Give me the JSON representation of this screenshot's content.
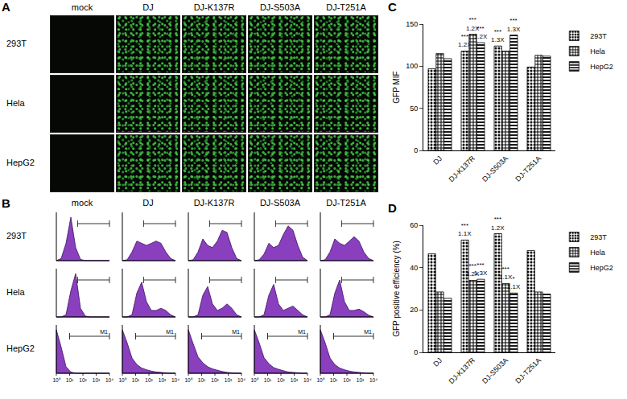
{
  "panel_A": {
    "panel": "A",
    "columns": [
      "mock",
      "DJ",
      "DJ-K137R",
      "DJ-S503A",
      "DJ-T251A"
    ],
    "rows": [
      "293T",
      "Hela",
      "HepG2"
    ],
    "signal": [
      false,
      true,
      true,
      true,
      true
    ]
  },
  "panel_B": {
    "panel": "B",
    "columns": [
      "mock",
      "DJ",
      "DJ-K137R",
      "DJ-S503A",
      "DJ-T251A"
    ],
    "xlim": [
      0,
      4
    ],
    "rows": [
      {
        "label": "293T",
        "gate": [
          1.6,
          4
        ],
        "histograms": [
          [
            0,
            5,
            40,
            100,
            30,
            3,
            0,
            0,
            0,
            0,
            0,
            0
          ],
          [
            0,
            2,
            20,
            45,
            40,
            35,
            40,
            45,
            40,
            20,
            5,
            0
          ],
          [
            0,
            2,
            20,
            50,
            35,
            30,
            45,
            70,
            65,
            30,
            5,
            0
          ],
          [
            0,
            2,
            15,
            40,
            30,
            35,
            60,
            80,
            70,
            35,
            8,
            0
          ],
          [
            0,
            2,
            20,
            50,
            40,
            35,
            45,
            55,
            45,
            20,
            5,
            0
          ]
        ]
      },
      {
        "label": "Hela",
        "gate": [
          1.6,
          4
        ],
        "histograms": [
          [
            0,
            0,
            5,
            60,
            100,
            20,
            2,
            0,
            0,
            0,
            0,
            0
          ],
          [
            0,
            0,
            5,
            55,
            80,
            35,
            15,
            15,
            20,
            15,
            5,
            0
          ],
          [
            0,
            0,
            5,
            50,
            70,
            30,
            15,
            20,
            30,
            20,
            5,
            0
          ],
          [
            0,
            0,
            5,
            50,
            75,
            30,
            15,
            20,
            25,
            15,
            5,
            0
          ],
          [
            0,
            0,
            5,
            55,
            85,
            35,
            15,
            15,
            18,
            12,
            4,
            0
          ]
        ]
      },
      {
        "label": "HepG2",
        "gate": [
          1.0,
          4
        ],
        "gate_label": "M1",
        "x_ticks": [
          {
            "value": 0,
            "label": "10⁰"
          },
          {
            "value": 1,
            "label": "10¹"
          },
          {
            "value": 2,
            "label": "10²"
          },
          {
            "value": 3,
            "label": "10³"
          },
          {
            "value": 4,
            "label": "10⁴"
          }
        ],
        "histograms": [
          [
            100,
            60,
            15,
            3,
            0,
            0,
            0,
            0,
            0,
            0,
            0,
            0
          ],
          [
            100,
            70,
            35,
            20,
            12,
            8,
            5,
            3,
            2,
            1,
            0,
            0
          ],
          [
            100,
            68,
            38,
            24,
            15,
            10,
            7,
            4,
            2,
            1,
            0,
            0
          ],
          [
            100,
            70,
            36,
            22,
            13,
            9,
            6,
            3,
            2,
            1,
            0,
            0
          ],
          [
            100,
            70,
            35,
            20,
            12,
            8,
            5,
            3,
            2,
            1,
            0,
            0
          ]
        ]
      }
    ]
  },
  "chart_data": [
    {
      "type": "bar",
      "panel": "C",
      "y_label": "GFP MIF",
      "categories": [
        "DJ",
        "DJ-K137R",
        "DJ-S503A",
        "DJ-T251A"
      ],
      "ylim": [
        0,
        150
      ],
      "yticks": [
        0,
        50,
        100,
        150
      ],
      "grid": false,
      "legend": "right",
      "series": [
        {
          "name": "293T",
          "color": "#000000",
          "marker": "dots",
          "values": [
            97,
            118,
            124,
            99
          ],
          "annotations": [
            null,
            "***\n1.2X",
            "***\n1.3X",
            null
          ]
        },
        {
          "name": "Hela",
          "color": "#000000",
          "marker": "checks",
          "values": [
            115,
            138,
            118,
            113
          ],
          "annotations": [
            null,
            "***\n1.2X",
            null,
            null
          ]
        },
        {
          "name": "HepG2",
          "color": "#000000",
          "marker": "lines",
          "values": [
            109,
            128,
            137,
            112
          ],
          "annotations": [
            null,
            "***\n1.2X",
            "***\n1.3X",
            null
          ]
        }
      ]
    },
    {
      "type": "bar",
      "panel": "D",
      "y_label": "GFP positive efficiency (%)",
      "categories": [
        "DJ",
        "DJ-K137R",
        "DJ-S503A",
        "DJ-T251A"
      ],
      "ylim": [
        0,
        60
      ],
      "yticks": [
        0,
        20,
        40,
        60
      ],
      "grid": false,
      "legend": "right",
      "series": [
        {
          "name": "293T",
          "color": "#000000",
          "marker": "dots",
          "values": [
            46.5,
            53,
            56,
            48
          ],
          "annotations": [
            null,
            "***\n1.1X",
            "***\n1.2X",
            null
          ]
        },
        {
          "name": "Hela",
          "color": "#000000",
          "marker": "checks",
          "values": [
            28.5,
            34,
            32.5,
            28.5
          ],
          "annotations": [
            null,
            "***\n1.2X",
            "***\n1.1X",
            null
          ]
        },
        {
          "name": "HepG2",
          "color": "#000000",
          "marker": "lines",
          "values": [
            25.5,
            34.5,
            28,
            27.5
          ],
          "annotations": [
            null,
            "***\n1.3X",
            "*\n1.1X",
            null
          ]
        }
      ]
    }
  ]
}
